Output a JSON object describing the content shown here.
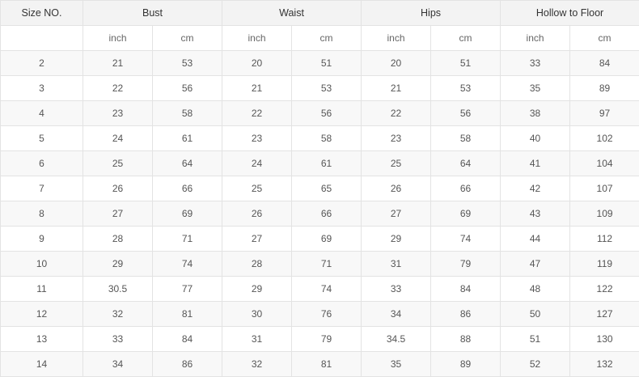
{
  "table": {
    "headers": [
      "Size NO.",
      "Bust",
      "Waist",
      "Hips",
      "Hollow to Floor"
    ],
    "units": [
      "inch",
      "cm",
      "inch",
      "cm",
      "inch",
      "cm",
      "inch",
      "cm"
    ],
    "rows": [
      [
        "2",
        "21",
        "53",
        "20",
        "51",
        "20",
        "51",
        "33",
        "84"
      ],
      [
        "3",
        "22",
        "56",
        "21",
        "53",
        "21",
        "53",
        "35",
        "89"
      ],
      [
        "4",
        "23",
        "58",
        "22",
        "56",
        "22",
        "56",
        "38",
        "97"
      ],
      [
        "5",
        "24",
        "61",
        "23",
        "58",
        "23",
        "58",
        "40",
        "102"
      ],
      [
        "6",
        "25",
        "64",
        "24",
        "61",
        "25",
        "64",
        "41",
        "104"
      ],
      [
        "7",
        "26",
        "66",
        "25",
        "65",
        "26",
        "66",
        "42",
        "107"
      ],
      [
        "8",
        "27",
        "69",
        "26",
        "66",
        "27",
        "69",
        "43",
        "109"
      ],
      [
        "9",
        "28",
        "71",
        "27",
        "69",
        "29",
        "74",
        "44",
        "112"
      ],
      [
        "10",
        "29",
        "74",
        "28",
        "71",
        "31",
        "79",
        "47",
        "119"
      ],
      [
        "11",
        "30.5",
        "77",
        "29",
        "74",
        "33",
        "84",
        "48",
        "122"
      ],
      [
        "12",
        "32",
        "81",
        "30",
        "76",
        "34",
        "86",
        "50",
        "127"
      ],
      [
        "13",
        "33",
        "84",
        "31",
        "79",
        "34.5",
        "88",
        "51",
        "130"
      ],
      [
        "14",
        "34",
        "86",
        "32",
        "81",
        "35",
        "89",
        "52",
        "132"
      ]
    ]
  }
}
